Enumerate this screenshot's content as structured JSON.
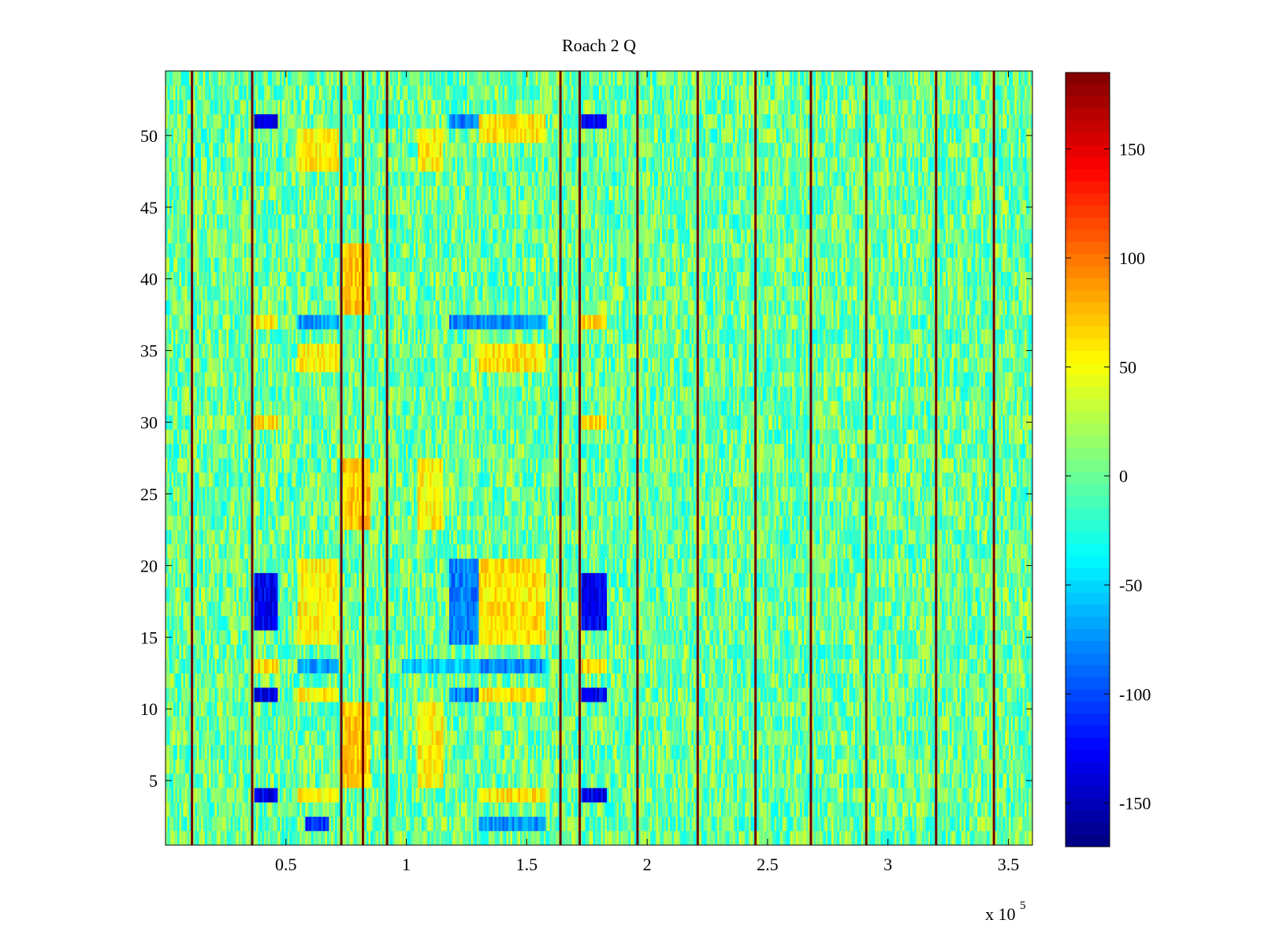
{
  "chart_data": {
    "type": "heatmap",
    "title": "Roach 2 Q",
    "xlabel": "",
    "ylabel": "",
    "x_multiplier_label": {
      "base": "x 10",
      "exponent": "5"
    },
    "xlim": [
      0.0,
      3.6
    ],
    "ylim": [
      0.5,
      54.5
    ],
    "x_ticks": [
      {
        "value": 0.5,
        "label": "0.5"
      },
      {
        "value": 1.0,
        "label": "1"
      },
      {
        "value": 1.5,
        "label": "1.5"
      },
      {
        "value": 2.0,
        "label": "2"
      },
      {
        "value": 2.5,
        "label": "2.5"
      },
      {
        "value": 3.0,
        "label": "3"
      },
      {
        "value": 3.5,
        "label": "3.5"
      }
    ],
    "y_ticks": [
      {
        "value": 5,
        "label": "5"
      },
      {
        "value": 10,
        "label": "10"
      },
      {
        "value": 15,
        "label": "15"
      },
      {
        "value": 20,
        "label": "20"
      },
      {
        "value": 25,
        "label": "25"
      },
      {
        "value": 30,
        "label": "30"
      },
      {
        "value": 35,
        "label": "35"
      },
      {
        "value": 40,
        "label": "40"
      },
      {
        "value": 45,
        "label": "45"
      },
      {
        "value": 50,
        "label": "50"
      }
    ],
    "colorbar": {
      "colormap": "jet",
      "clim": [
        -170,
        185
      ],
      "ticks": [
        {
          "value": 150,
          "label": "150"
        },
        {
          "value": 100,
          "label": "100"
        },
        {
          "value": 50,
          "label": "50"
        },
        {
          "value": 0,
          "label": "0"
        },
        {
          "value": -50,
          "label": "-50"
        },
        {
          "value": -100,
          "label": "-100"
        },
        {
          "value": -150,
          "label": "-150"
        }
      ]
    },
    "rows": 54,
    "background_value_range": [
      -40,
      40
    ],
    "vertical_spike_lines_x": [
      0.11,
      0.36,
      0.73,
      0.82,
      0.92,
      1.64,
      1.72,
      1.96,
      2.21,
      2.45,
      2.68,
      2.91,
      3.2,
      3.44
    ],
    "spike_value": 185,
    "regions": [
      {
        "x": [
          0.37,
          0.47
        ],
        "rows": [
          [
            16,
            19
          ],
          [
            11,
            11
          ],
          [
            4,
            4
          ],
          [
            51,
            51
          ]
        ],
        "value": -130
      },
      {
        "x": [
          0.37,
          0.47
        ],
        "rows": [
          [
            37,
            37
          ],
          [
            30,
            30
          ],
          [
            13,
            13
          ]
        ],
        "value": 60
      },
      {
        "x": [
          1.73,
          1.83
        ],
        "rows": [
          [
            16,
            19
          ],
          [
            11,
            11
          ],
          [
            4,
            4
          ],
          [
            51,
            51
          ]
        ],
        "value": -130
      },
      {
        "x": [
          1.73,
          1.83
        ],
        "rows": [
          [
            37,
            37
          ],
          [
            30,
            30
          ],
          [
            13,
            13
          ]
        ],
        "value": 65
      },
      {
        "x": [
          0.55,
          0.72
        ],
        "rows": [
          [
            15,
            20
          ],
          [
            11,
            11
          ],
          [
            4,
            4
          ],
          [
            34,
            35
          ],
          [
            48,
            50
          ]
        ],
        "value": 55
      },
      {
        "x": [
          0.55,
          0.72
        ],
        "rows": [
          [
            37,
            37
          ],
          [
            13,
            13
          ]
        ],
        "value": -70
      },
      {
        "x": [
          0.74,
          0.85
        ],
        "rows": [
          [
            5,
            10
          ],
          [
            23,
            27
          ],
          [
            38,
            42
          ]
        ],
        "value": 70
      },
      {
        "x": [
          1.3,
          1.58
        ],
        "rows": [
          [
            15,
            20
          ],
          [
            11,
            11
          ],
          [
            4,
            4
          ],
          [
            34,
            35
          ],
          [
            50,
            51
          ]
        ],
        "value": 60
      },
      {
        "x": [
          1.3,
          1.58
        ],
        "rows": [
          [
            37,
            37
          ],
          [
            13,
            13
          ],
          [
            2,
            2
          ]
        ],
        "value": -75
      },
      {
        "x": [
          1.05,
          1.15
        ],
        "rows": [
          [
            5,
            10
          ],
          [
            23,
            27
          ],
          [
            48,
            50
          ]
        ],
        "value": 55
      },
      {
        "x": [
          1.18,
          1.3
        ],
        "rows": [
          [
            15,
            20
          ],
          [
            11,
            11
          ],
          [
            51,
            51
          ],
          [
            37,
            37
          ]
        ],
        "value": -80
      },
      {
        "x": [
          0.98,
          1.3
        ],
        "rows": [
          [
            13,
            13
          ]
        ],
        "value": -55
      },
      {
        "x": [
          0.58,
          0.68
        ],
        "rows": [
          [
            2,
            2
          ]
        ],
        "value": -110
      }
    ]
  }
}
